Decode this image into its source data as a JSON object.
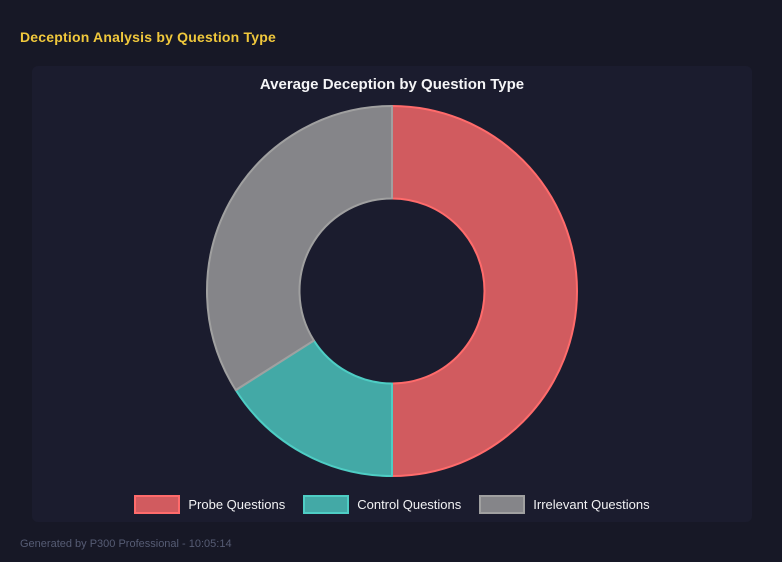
{
  "page": {
    "title": "Deception Analysis by Question Type",
    "title_color": "#f0c83c",
    "background": "#171826",
    "panel_background": "#1b1c2e",
    "footer": "Generated by P300 Professional - 10:05:14"
  },
  "chart_data": {
    "type": "pie",
    "donut": true,
    "title": "Average Deception by Question Type",
    "labels": [
      "Probe Questions",
      "Control Questions",
      "Irrelevant Questions"
    ],
    "values": [
      50,
      16,
      34
    ],
    "values_unit": "percent_of_total_estimated_from_arc_angles",
    "start_angle_deg": 0,
    "clockwise": true,
    "cutout_ratio": 0.5,
    "legend_position": "bottom",
    "grid": false,
    "colors": [
      {
        "fill": "rgba(255,107,107,0.8)",
        "border": "#ff6b6b"
      },
      {
        "fill": "rgba(78,205,196,0.8)",
        "border": "#4ecdc4"
      },
      {
        "fill": "rgba(160,160,160,0.8)",
        "border": "#a0a0a0"
      }
    ]
  }
}
